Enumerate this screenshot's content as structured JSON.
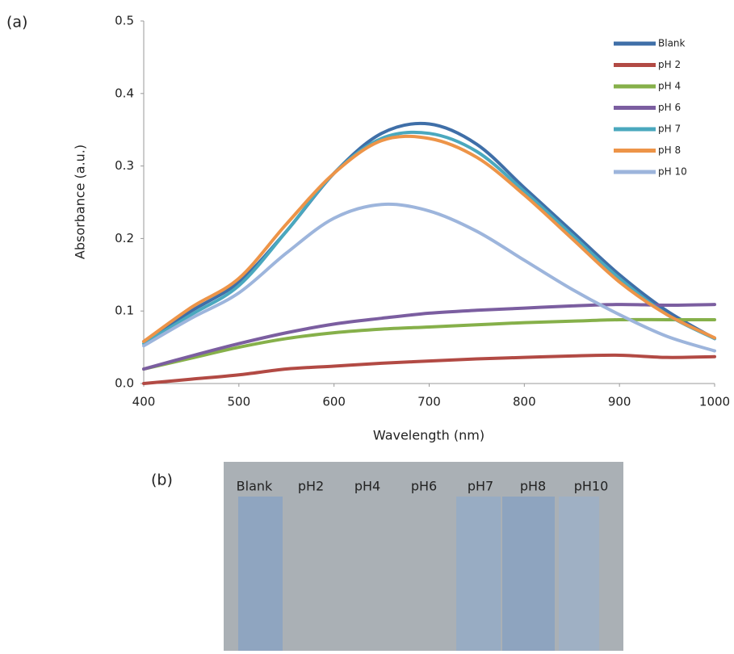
{
  "chart_data": {
    "type": "line",
    "panel_label": "(a)",
    "x_label": "Wavelength (nm)",
    "y_label": "Absorbance (a.u.)",
    "x": [
      400,
      450,
      500,
      550,
      600,
      650,
      700,
      750,
      800,
      850,
      900,
      950,
      1000
    ],
    "series": [
      {
        "name": "Blank",
        "color": "#3f6fa8",
        "values": [
          0.058,
          0.1,
          0.14,
          0.21,
          0.29,
          0.345,
          0.358,
          0.33,
          0.27,
          0.21,
          0.15,
          0.1,
          0.062
        ]
      },
      {
        "name": "pH 2",
        "color": "#b24a44",
        "values": [
          0.0,
          0.006,
          0.012,
          0.02,
          0.024,
          0.028,
          0.031,
          0.034,
          0.036,
          0.038,
          0.039,
          0.036,
          0.037
        ]
      },
      {
        "name": "pH 4",
        "color": "#86b04a",
        "values": [
          0.02,
          0.035,
          0.05,
          0.062,
          0.07,
          0.075,
          0.078,
          0.081,
          0.084,
          0.086,
          0.088,
          0.088,
          0.088
        ]
      },
      {
        "name": "pH 6",
        "color": "#7b5ea0",
        "values": [
          0.02,
          0.038,
          0.055,
          0.07,
          0.082,
          0.09,
          0.097,
          0.101,
          0.104,
          0.107,
          0.109,
          0.108,
          0.109
        ]
      },
      {
        "name": "pH 7",
        "color": "#4aa8be",
        "values": [
          0.055,
          0.095,
          0.135,
          0.21,
          0.29,
          0.338,
          0.345,
          0.32,
          0.265,
          0.205,
          0.145,
          0.095,
          0.062
        ]
      },
      {
        "name": "pH 8",
        "color": "#ed9448",
        "values": [
          0.058,
          0.105,
          0.145,
          0.22,
          0.29,
          0.335,
          0.338,
          0.312,
          0.26,
          0.2,
          0.14,
          0.095,
          0.063
        ]
      },
      {
        "name": "pH 10",
        "color": "#9db5dc",
        "values": [
          0.052,
          0.09,
          0.125,
          0.18,
          0.228,
          0.247,
          0.238,
          0.21,
          0.17,
          0.13,
          0.095,
          0.065,
          0.045
        ]
      }
    ],
    "xlim": [
      400,
      1000
    ],
    "xticks": [
      400,
      500,
      600,
      700,
      800,
      900,
      1000
    ],
    "ylim": [
      0,
      0.5
    ],
    "yticks": [
      {
        "value": 0,
        "label": "0.0"
      },
      0.1,
      0.2,
      0.3,
      0.4,
      0.5
    ],
    "grid": false,
    "legend": "upper right"
  },
  "photo": {
    "panel_label": "(b)",
    "labels": [
      "Blank",
      "pH2",
      "pH4",
      "pH6",
      "pH7",
      "pH8",
      "pH10"
    ]
  }
}
